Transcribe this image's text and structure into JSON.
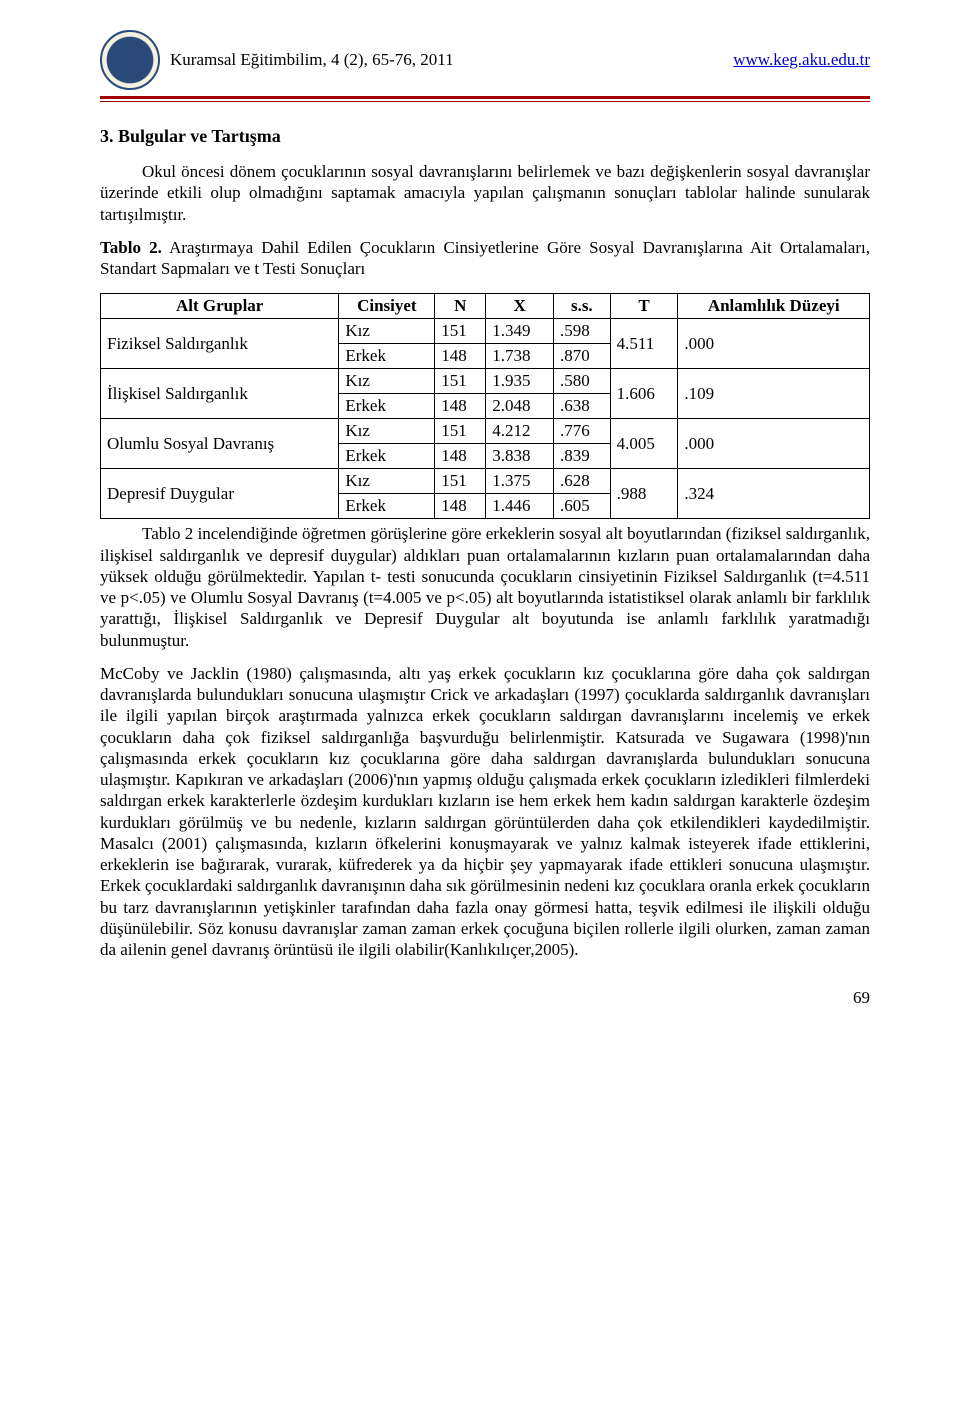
{
  "header": {
    "left": "Kuramsal Eğitimbilim, 4 (2), 65-76, 2011",
    "right": "www.keg.aku.edu.tr"
  },
  "section_title": "3. Bulgular ve Tartışma",
  "intro": "Okul öncesi dönem çocuklarının sosyal davranışlarını belirlemek ve bazı değişkenlerin sosyal davranışlar üzerinde etkili olup olmadığını saptamak amacıyla yapılan çalışmanın sonuçları tablolar halinde sunularak tartışılmıştır.",
  "table_caption_bold": "Tablo 2.",
  "table_caption_rest": " Araştırmaya Dahil Edilen Çocukların Cinsiyetlerine Göre Sosyal Davranışlarına Ait Ortalamaları, Standart Sapmaları ve t Testi Sonuçları",
  "table": {
    "headers": [
      "Alt Gruplar",
      "Cinsiyet",
      "N",
      "X",
      "s.s.",
      "T",
      "Anlamlılık Düzeyi"
    ],
    "groups": [
      {
        "label": "Fiziksel Saldırganlık",
        "rows": [
          {
            "sex": "Kız",
            "n": "151",
            "x": "1.349",
            "ss": ".598"
          },
          {
            "sex": "Erkek",
            "n": "148",
            "x": "1.738",
            "ss": ".870"
          }
        ],
        "t": "4.511",
        "p": ".000"
      },
      {
        "label": "İlişkisel Saldırganlık",
        "rows": [
          {
            "sex": "Kız",
            "n": "151",
            "x": "1.935",
            "ss": ".580"
          },
          {
            "sex": "Erkek",
            "n": "148",
            "x": "2.048",
            "ss": ".638"
          }
        ],
        "t": "1.606",
        "p": ".109"
      },
      {
        "label": "Olumlu Sosyal Davranış",
        "label_row1": "Olumlu Sosyal",
        "label_row2": "Davranış",
        "rows": [
          {
            "sex": "Kız",
            "n": "151",
            "x": "4.212",
            "ss": ".776"
          },
          {
            "sex": "Erkek",
            "n": "148",
            "x": "3.838",
            "ss": ".839"
          }
        ],
        "t": "4.005",
        "p": ".000"
      },
      {
        "label": "Depresif Duygular",
        "rows": [
          {
            "sex": "Kız",
            "n": "151",
            "x": "1.375",
            "ss": ".628"
          },
          {
            "sex": "Erkek",
            "n": "148",
            "x": "1.446",
            "ss": ".605"
          }
        ],
        "t": ".988",
        "p": ".324"
      }
    ]
  },
  "para2": "Tablo 2 incelendiğinde öğretmen görüşlerine göre erkeklerin sosyal alt boyutlarından (fiziksel saldırganlık, ilişkisel saldırganlık ve depresif duygular) aldıkları puan ortalamalarının kızların puan ortalamalarından daha yüksek olduğu görülmektedir. Yapılan t- testi sonucunda çocukların cinsiyetinin Fiziksel Saldırganlık (t=4.511 ve p<.05) ve Olumlu Sosyal Davranış (t=4.005 ve p<.05) alt boyutlarında istatistiksel olarak anlamlı bir farklılık yarattığı, İlişkisel Saldırganlık ve Depresif Duygular alt boyutunda ise anlamlı farklılık yaratmadığı bulunmuştur.",
  "para3": "McCoby ve Jacklin (1980) çalışmasında, altı yaş erkek çocukların kız çocuklarına göre daha çok saldırgan davranışlarda bulundukları sonucuna ulaşmıştır Crick ve arkadaşları (1997) çocuklarda saldırganlık davranışları ile ilgili yapılan birçok araştırmada yalnızca erkek çocukların saldırgan davranışlarını incelemiş ve erkek çocukların daha çok fiziksel saldırganlığa başvurduğu belirlenmiştir. Katsurada ve Sugawara (1998)'nın çalışmasında erkek çocukların kız çocuklarına göre daha saldırgan davranışlarda bulundukları sonucuna ulaşmıştır. Kapıkıran ve arkadaşları (2006)'nın yapmış olduğu çalışmada erkek çocukların izledikleri filmlerdeki saldırgan erkek karakterlerle özdeşim kurdukları kızların ise hem erkek hem kadın saldırgan karakterle özdeşim kurdukları görülmüş ve bu nedenle, kızların saldırgan görüntülerden daha çok etkilendikleri kaydedilmiştir. Masalcı (2001) çalışmasında, kızların öfkelerini konuşmayarak ve yalnız kalmak isteyerek ifade ettiklerini, erkeklerin ise bağırarak, vurarak, küfrederek ya da hiçbir şey yapmayarak ifade ettikleri sonucuna ulaşmıştır. Erkek çocuklardaki saldırganlık davranışının daha sık görülmesinin nedeni kız çocuklara oranla erkek çocukların bu tarz davranışlarının yetişkinler tarafından daha fazla onay görmesi hatta, teşvik edilmesi ile ilişkili olduğu düşünülebilir. Söz konusu davranışlar zaman zaman erkek çocuğuna biçilen rollerle ilgili olurken, zaman zaman da ailenin genel davranış örüntüsü ile ilgili olabilir(Kanlıkılıçer,2005).",
  "page_number": "69",
  "colors": {
    "link": "#0000cc",
    "rule": "#a00000",
    "logo_blue": "#2b4a7a"
  }
}
